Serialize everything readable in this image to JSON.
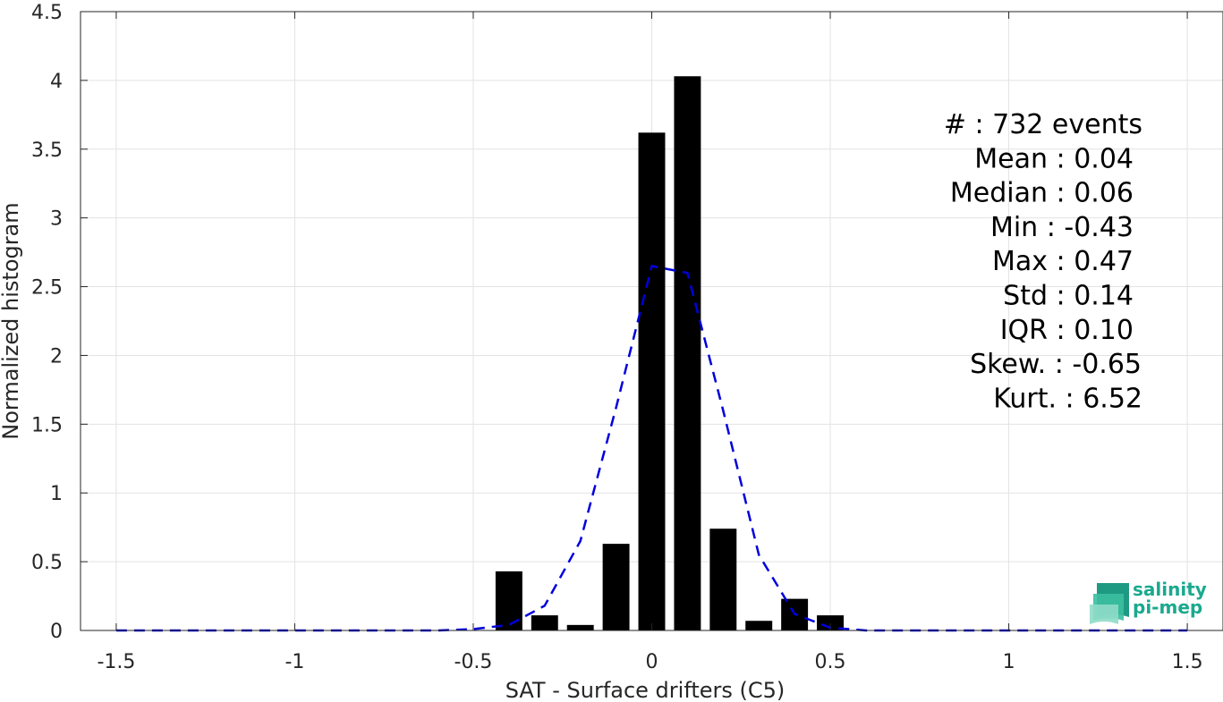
{
  "chart_data": {
    "type": "bar",
    "xlabel": "SAT - Surface drifters (C5)",
    "ylabel": "Normalized histogram",
    "xlim": [
      -1.6,
      1.6
    ],
    "ylim": [
      0,
      4.5
    ],
    "xticks": [
      -1.5,
      -1,
      -0.5,
      0,
      0.5,
      1,
      1.5
    ],
    "xtick_labels": [
      "-1.5",
      "-1",
      "-0.5",
      "0",
      "0.5",
      "1",
      "1.5"
    ],
    "yticks": [
      0,
      0.5,
      1,
      1.5,
      2,
      2.5,
      3,
      3.5,
      4,
      4.5
    ],
    "ytick_labels": [
      "0",
      "0.5",
      "1",
      "1.5",
      "2",
      "2.5",
      "3",
      "3.5",
      "4",
      "4.5"
    ],
    "grid": true,
    "bar_color": "#000000",
    "bins": [
      {
        "x": -0.4,
        "value": 0.43
      },
      {
        "x": -0.3,
        "value": 0.11
      },
      {
        "x": -0.2,
        "value": 0.04
      },
      {
        "x": -0.1,
        "value": 0.63
      },
      {
        "x": 0.0,
        "value": 3.62
      },
      {
        "x": 0.1,
        "value": 4.03
      },
      {
        "x": 0.2,
        "value": 0.74
      },
      {
        "x": 0.3,
        "value": 0.07
      },
      {
        "x": 0.4,
        "value": 0.23
      },
      {
        "x": 0.5,
        "value": 0.11
      }
    ],
    "fit_curve": {
      "style": "dashed",
      "color": "#0000dd",
      "points": [
        [
          -1.5,
          0.0
        ],
        [
          -1.4,
          0.0
        ],
        [
          -1.3,
          0.0
        ],
        [
          -1.2,
          0.0
        ],
        [
          -1.1,
          0.0
        ],
        [
          -1.0,
          0.0
        ],
        [
          -0.9,
          0.0
        ],
        [
          -0.8,
          0.0
        ],
        [
          -0.7,
          0.0
        ],
        [
          -0.6,
          0.0
        ],
        [
          -0.5,
          0.01
        ],
        [
          -0.4,
          0.04
        ],
        [
          -0.3,
          0.18
        ],
        [
          -0.2,
          0.65
        ],
        [
          -0.1,
          1.62
        ],
        [
          0.0,
          2.65
        ],
        [
          0.1,
          2.6
        ],
        [
          0.2,
          1.6
        ],
        [
          0.3,
          0.55
        ],
        [
          0.4,
          0.12
        ],
        [
          0.5,
          0.02
        ],
        [
          0.6,
          0.0
        ],
        [
          0.7,
          0.0
        ],
        [
          0.8,
          0.0
        ],
        [
          0.9,
          0.0
        ],
        [
          1.0,
          0.0
        ],
        [
          1.1,
          0.0
        ],
        [
          1.2,
          0.0
        ],
        [
          1.3,
          0.0
        ],
        [
          1.4,
          0.0
        ],
        [
          1.5,
          0.0
        ]
      ]
    },
    "annotations": [
      "#  : 732 events",
      "Mean : 0.04",
      "Median : 0.06",
      "Min : -0.43",
      "Max : 0.47",
      "Std : 0.14",
      "IQR : 0.10",
      "Skew. : -0.65",
      "Kurt. : 6.52"
    ]
  },
  "logo": {
    "line1": "salinity",
    "line2": "pi-mep",
    "color": "#1aa98e"
  }
}
